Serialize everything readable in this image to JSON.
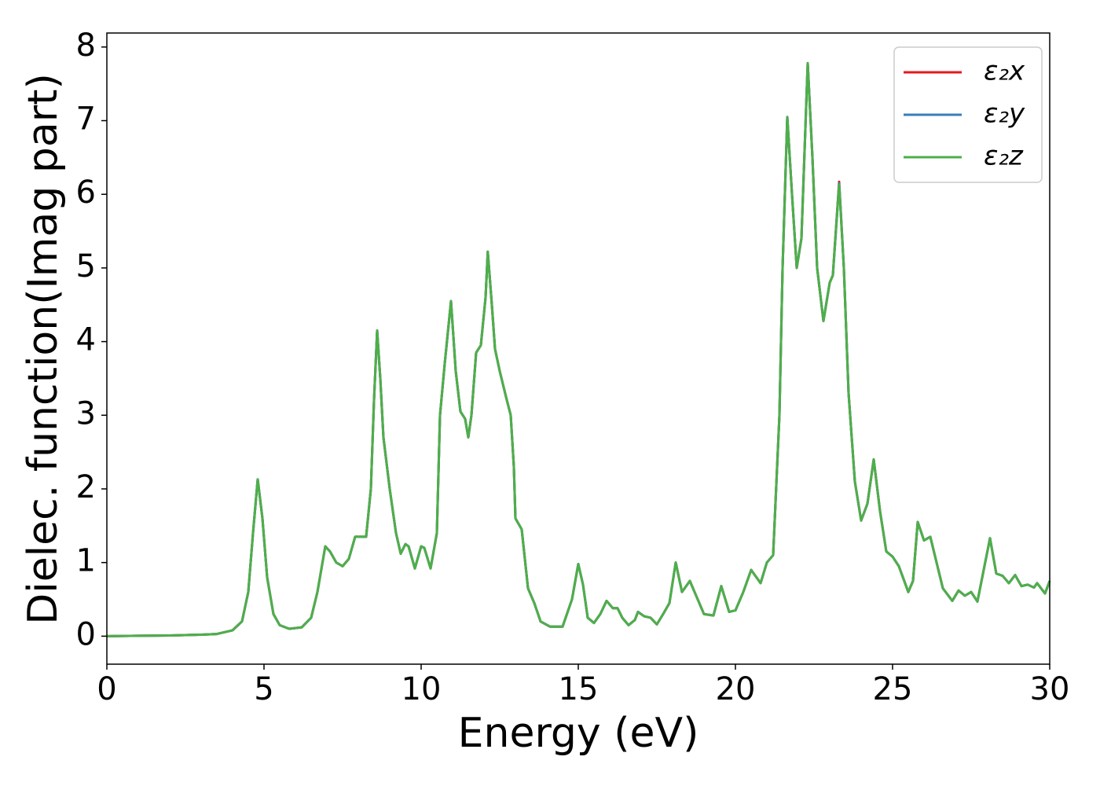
{
  "chart_data": {
    "type": "line",
    "x_label": "Energy (eV)",
    "y_label": "Dielec. function(Imag part)",
    "x": [
      0,
      1,
      2,
      3,
      3.5,
      4,
      4.3,
      4.5,
      4.65,
      4.8,
      4.95,
      5.1,
      5.3,
      5.5,
      5.8,
      6.2,
      6.5,
      6.7,
      6.95,
      7.1,
      7.3,
      7.5,
      7.7,
      7.9,
      8.1,
      8.25,
      8.4,
      8.5,
      8.6,
      8.7,
      8.8,
      9.0,
      9.2,
      9.35,
      9.5,
      9.6,
      9.8,
      10.0,
      10.1,
      10.3,
      10.5,
      10.6,
      10.75,
      10.95,
      11.1,
      11.25,
      11.4,
      11.5,
      11.6,
      11.75,
      11.9,
      12.05,
      12.12,
      12.25,
      12.35,
      12.5,
      12.7,
      12.85,
      12.95,
      13.0,
      13.2,
      13.4,
      13.6,
      13.8,
      14.1,
      14.5,
      14.8,
      15.0,
      15.15,
      15.3,
      15.5,
      15.7,
      15.9,
      16.1,
      16.25,
      16.4,
      16.6,
      16.8,
      16.9,
      17.1,
      17.3,
      17.5,
      17.7,
      17.9,
      18.1,
      18.3,
      18.55,
      18.8,
      19.0,
      19.3,
      19.55,
      19.8,
      20.0,
      20.25,
      20.5,
      20.8,
      21.0,
      21.2,
      21.4,
      21.5,
      21.65,
      21.8,
      21.95,
      22.1,
      22.3,
      22.45,
      22.6,
      22.8,
      23.0,
      23.1,
      23.3,
      23.45,
      23.6,
      23.8,
      24.0,
      24.2,
      24.4,
      24.6,
      24.8,
      25.0,
      25.2,
      25.5,
      25.65,
      25.8,
      26.0,
      26.2,
      26.4,
      26.6,
      26.9,
      27.1,
      27.3,
      27.5,
      27.7,
      27.9,
      28.1,
      28.3,
      28.5,
      28.7,
      28.9,
      29.1,
      29.3,
      29.5,
      29.6,
      29.85,
      30
    ],
    "series": [
      {
        "name": "ε₂x",
        "color": "#e41a1c",
        "values": [
          0,
          0.005,
          0.01,
          0.02,
          0.03,
          0.08,
          0.2,
          0.6,
          1.4,
          2.13,
          1.6,
          0.8,
          0.3,
          0.15,
          0.1,
          0.12,
          0.25,
          0.6,
          1.22,
          1.15,
          1.0,
          0.95,
          1.05,
          1.35,
          1.35,
          1.35,
          2.0,
          3.2,
          4.15,
          3.5,
          2.7,
          2.0,
          1.4,
          1.12,
          1.25,
          1.22,
          0.92,
          1.22,
          1.2,
          0.92,
          1.4,
          3.0,
          3.7,
          4.55,
          3.6,
          3.05,
          2.95,
          2.7,
          3.0,
          3.85,
          3.95,
          4.6,
          5.22,
          4.5,
          3.9,
          3.6,
          3.25,
          3.0,
          2.3,
          1.6,
          1.45,
          0.65,
          0.45,
          0.2,
          0.13,
          0.13,
          0.5,
          0.98,
          0.7,
          0.25,
          0.18,
          0.3,
          0.48,
          0.38,
          0.38,
          0.25,
          0.15,
          0.22,
          0.33,
          0.27,
          0.25,
          0.16,
          0.3,
          0.45,
          1.0,
          0.6,
          0.75,
          0.5,
          0.3,
          0.28,
          0.68,
          0.33,
          0.35,
          0.6,
          0.9,
          0.72,
          1.0,
          1.1,
          3.0,
          5.0,
          7.05,
          6.0,
          5.0,
          5.4,
          7.78,
          6.5,
          5.0,
          4.28,
          4.8,
          4.9,
          6.17,
          5.0,
          3.3,
          2.1,
          1.57,
          1.8,
          2.4,
          1.7,
          1.15,
          1.08,
          0.95,
          0.6,
          0.75,
          1.55,
          1.3,
          1.35,
          1.0,
          0.65,
          0.48,
          0.62,
          0.55,
          0.6,
          0.47,
          0.9,
          1.33,
          0.85,
          0.82,
          0.72,
          0.83,
          0.68,
          0.7,
          0.66,
          0.72,
          0.58,
          0.75
        ]
      },
      {
        "name": "ε₂y",
        "color": "#377eb8",
        "values": [
          0,
          0.005,
          0.01,
          0.02,
          0.03,
          0.08,
          0.2,
          0.6,
          1.4,
          2.13,
          1.6,
          0.8,
          0.3,
          0.15,
          0.1,
          0.12,
          0.25,
          0.6,
          1.22,
          1.15,
          1.0,
          0.95,
          1.05,
          1.35,
          1.35,
          1.35,
          2.0,
          3.2,
          4.15,
          3.5,
          2.7,
          2.0,
          1.4,
          1.12,
          1.25,
          1.22,
          0.92,
          1.22,
          1.2,
          0.92,
          1.4,
          3.0,
          3.7,
          4.55,
          3.6,
          3.05,
          2.95,
          2.7,
          3.0,
          3.85,
          3.95,
          4.6,
          5.22,
          4.5,
          3.9,
          3.6,
          3.25,
          3.0,
          2.3,
          1.6,
          1.45,
          0.65,
          0.45,
          0.2,
          0.13,
          0.13,
          0.5,
          0.98,
          0.7,
          0.25,
          0.18,
          0.3,
          0.48,
          0.38,
          0.38,
          0.25,
          0.15,
          0.22,
          0.33,
          0.27,
          0.25,
          0.16,
          0.3,
          0.45,
          1.0,
          0.6,
          0.75,
          0.5,
          0.3,
          0.28,
          0.68,
          0.33,
          0.35,
          0.6,
          0.9,
          0.72,
          1.0,
          1.1,
          3.0,
          5.0,
          7.05,
          6.0,
          5.0,
          5.4,
          7.78,
          6.5,
          5.0,
          4.28,
          4.8,
          4.9,
          6.15,
          5.0,
          3.3,
          2.1,
          1.57,
          1.8,
          2.4,
          1.7,
          1.15,
          1.08,
          0.95,
          0.6,
          0.75,
          1.55,
          1.3,
          1.35,
          1.0,
          0.65,
          0.48,
          0.62,
          0.55,
          0.6,
          0.47,
          0.9,
          1.33,
          0.85,
          0.82,
          0.72,
          0.83,
          0.68,
          0.7,
          0.66,
          0.72,
          0.58,
          0.75
        ]
      },
      {
        "name": "ε₂z",
        "color": "#4daf4a",
        "values": [
          0,
          0.005,
          0.01,
          0.02,
          0.03,
          0.08,
          0.2,
          0.6,
          1.4,
          2.13,
          1.6,
          0.8,
          0.3,
          0.15,
          0.1,
          0.12,
          0.25,
          0.6,
          1.22,
          1.15,
          1.0,
          0.95,
          1.05,
          1.35,
          1.35,
          1.35,
          2.0,
          3.2,
          4.15,
          3.5,
          2.7,
          2.0,
          1.4,
          1.12,
          1.25,
          1.22,
          0.92,
          1.22,
          1.2,
          0.92,
          1.4,
          3.0,
          3.7,
          4.55,
          3.6,
          3.05,
          2.95,
          2.7,
          3.0,
          3.85,
          3.95,
          4.6,
          5.22,
          4.5,
          3.9,
          3.6,
          3.25,
          3.0,
          2.3,
          1.6,
          1.45,
          0.65,
          0.45,
          0.2,
          0.13,
          0.13,
          0.5,
          0.98,
          0.7,
          0.25,
          0.18,
          0.3,
          0.48,
          0.38,
          0.38,
          0.25,
          0.15,
          0.22,
          0.33,
          0.27,
          0.25,
          0.16,
          0.3,
          0.45,
          1.0,
          0.6,
          0.75,
          0.5,
          0.3,
          0.28,
          0.68,
          0.33,
          0.35,
          0.6,
          0.9,
          0.72,
          1.0,
          1.1,
          3.0,
          5.0,
          7.05,
          6.0,
          5.0,
          5.4,
          7.78,
          6.5,
          5.0,
          4.28,
          4.8,
          4.9,
          6.13,
          5.0,
          3.3,
          2.1,
          1.57,
          1.8,
          2.4,
          1.7,
          1.15,
          1.08,
          0.95,
          0.6,
          0.75,
          1.55,
          1.3,
          1.35,
          1.0,
          0.65,
          0.48,
          0.62,
          0.55,
          0.6,
          0.47,
          0.9,
          1.33,
          0.85,
          0.82,
          0.72,
          0.83,
          0.68,
          0.7,
          0.66,
          0.72,
          0.58,
          0.75
        ]
      }
    ],
    "xlim": [
      0,
      30
    ],
    "xticks": [
      0,
      5,
      10,
      15,
      20,
      25,
      30
    ],
    "ylim": [
      -0.38,
      8.19
    ],
    "yticks": [
      0,
      1,
      2,
      3,
      4,
      5,
      6,
      7,
      8
    ],
    "grid": false,
    "legend": "upper right"
  }
}
